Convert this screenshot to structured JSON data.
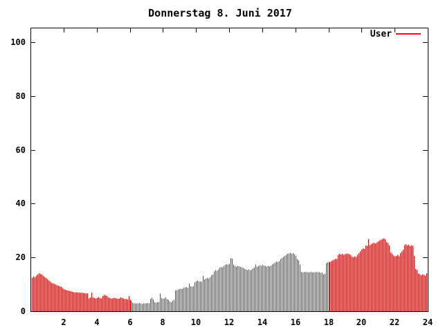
{
  "title": "Donnerstag 8. Juni 2017",
  "legend": {
    "label": "User",
    "position": "top-right-inside"
  },
  "colors": {
    "series": "#ff0000",
    "axis": "#000000",
    "text": "#000000",
    "background": "#ffffff"
  },
  "chart_data": {
    "type": "bar",
    "subtype": "impulses",
    "title": "Donnerstag 8. Juni 2017",
    "xlabel": "",
    "ylabel": "",
    "x_unit": "hour-of-day",
    "xlim": [
      0,
      24
    ],
    "ylim": [
      0,
      105
    ],
    "xticks": [
      2,
      4,
      6,
      8,
      10,
      12,
      14,
      16,
      18,
      20,
      22,
      24
    ],
    "yticks": [
      0,
      20,
      40,
      60,
      80,
      100
    ],
    "grid": false,
    "legend_position": "top-right-inside",
    "sample_interval_minutes": 5,
    "series": [
      {
        "name": "User",
        "color": "#ff0000",
        "values": [
          12.5,
          13.0,
          12.6,
          13.2,
          13.8,
          14.2,
          13.9,
          13.6,
          13.1,
          12.7,
          12.4,
          11.9,
          11.4,
          11.0,
          10.6,
          10.4,
          10.1,
          9.9,
          9.7,
          9.5,
          9.3,
          9.1,
          8.6,
          8.2,
          8.0,
          7.8,
          7.7,
          7.5,
          7.4,
          7.2,
          7.1,
          7.0,
          7.1,
          6.9,
          7.0,
          6.8,
          6.9,
          6.7,
          6.8,
          6.6,
          6.7,
          4.8,
          5.1,
          7.0,
          5.2,
          4.9,
          4.7,
          5.0,
          5.3,
          4.9,
          4.7,
          5.6,
          6.1,
          5.9,
          5.6,
          5.2,
          4.9,
          4.7,
          4.8,
          5.0,
          4.9,
          4.7,
          4.6,
          4.8,
          5.1,
          4.9,
          4.7,
          4.5,
          4.6,
          4.4,
          5.7,
          4.2,
          3.8,
          3.2,
          2.9,
          3.0,
          2.8,
          2.9,
          3.1,
          2.8,
          2.7,
          2.9,
          2.8,
          3.0,
          3.1,
          2.9,
          4.6,
          5.0,
          4.4,
          3.4,
          3.2,
          3.3,
          3.5,
          6.6,
          4.9,
          4.6,
          4.8,
          5.1,
          4.5,
          4.3,
          3.6,
          3.4,
          3.8,
          4.3,
          7.7,
          7.9,
          8.1,
          8.2,
          8.4,
          8.3,
          8.6,
          8.9,
          9.0,
          8.8,
          10.3,
          9.2,
          9.1,
          9.4,
          10.7,
          11.2,
          11.5,
          11.0,
          11.1,
          10.9,
          13.1,
          11.8,
          12.1,
          12.4,
          12.2,
          12.6,
          13.4,
          13.6,
          14.8,
          15.3,
          15.1,
          15.6,
          16.2,
          16.5,
          16.3,
          16.8,
          17.2,
          17.5,
          17.3,
          17.6,
          19.8,
          19.5,
          17.4,
          16.8,
          16.6,
          16.9,
          16.7,
          16.5,
          16.3,
          16.1,
          15.8,
          15.6,
          15.3,
          15.5,
          15.2,
          15.4,
          15.9,
          16.3,
          17.4,
          16.6,
          16.8,
          17.1,
          16.9,
          17.2,
          17.0,
          16.8,
          16.6,
          16.9,
          16.7,
          17.0,
          17.4,
          17.8,
          18.1,
          18.5,
          18.3,
          18.7,
          19.4,
          19.8,
          20.2,
          20.6,
          21.0,
          21.3,
          21.5,
          21.7,
          21.4,
          21.6,
          21.2,
          20.7,
          19.4,
          18.9,
          17.4,
          14.6,
          14.4,
          14.6,
          14.5,
          14.7,
          14.4,
          14.5,
          14.6,
          14.4,
          14.5,
          14.4,
          14.6,
          14.4,
          14.5,
          14.3,
          14.4,
          13.8,
          14.0,
          17.9,
          18.2,
          18.4,
          18.3,
          18.6,
          18.9,
          19.2,
          19.5,
          19.4,
          20.9,
          21.3,
          21.1,
          21.4,
          21.0,
          21.2,
          21.3,
          21.5,
          21.2,
          20.9,
          20.3,
          20.1,
          20.4,
          20.2,
          21.0,
          21.6,
          22.3,
          22.9,
          23.4,
          23.2,
          24.4,
          24.3,
          26.9,
          24.6,
          24.9,
          25.3,
          25.5,
          25.2,
          25.6,
          25.9,
          26.3,
          26.6,
          26.9,
          27.1,
          26.7,
          25.7,
          25.3,
          24.4,
          21.9,
          21.4,
          20.7,
          20.4,
          20.6,
          20.9,
          20.4,
          21.6,
          22.3,
          22.9,
          24.6,
          24.9,
          24.4,
          24.7,
          24.2,
          24.5,
          24.3,
          20.6,
          15.7,
          15.3,
          14.0,
          13.7,
          13.4,
          13.8,
          13.5,
          13.3,
          14.1,
          14.5
        ]
      }
    ]
  }
}
